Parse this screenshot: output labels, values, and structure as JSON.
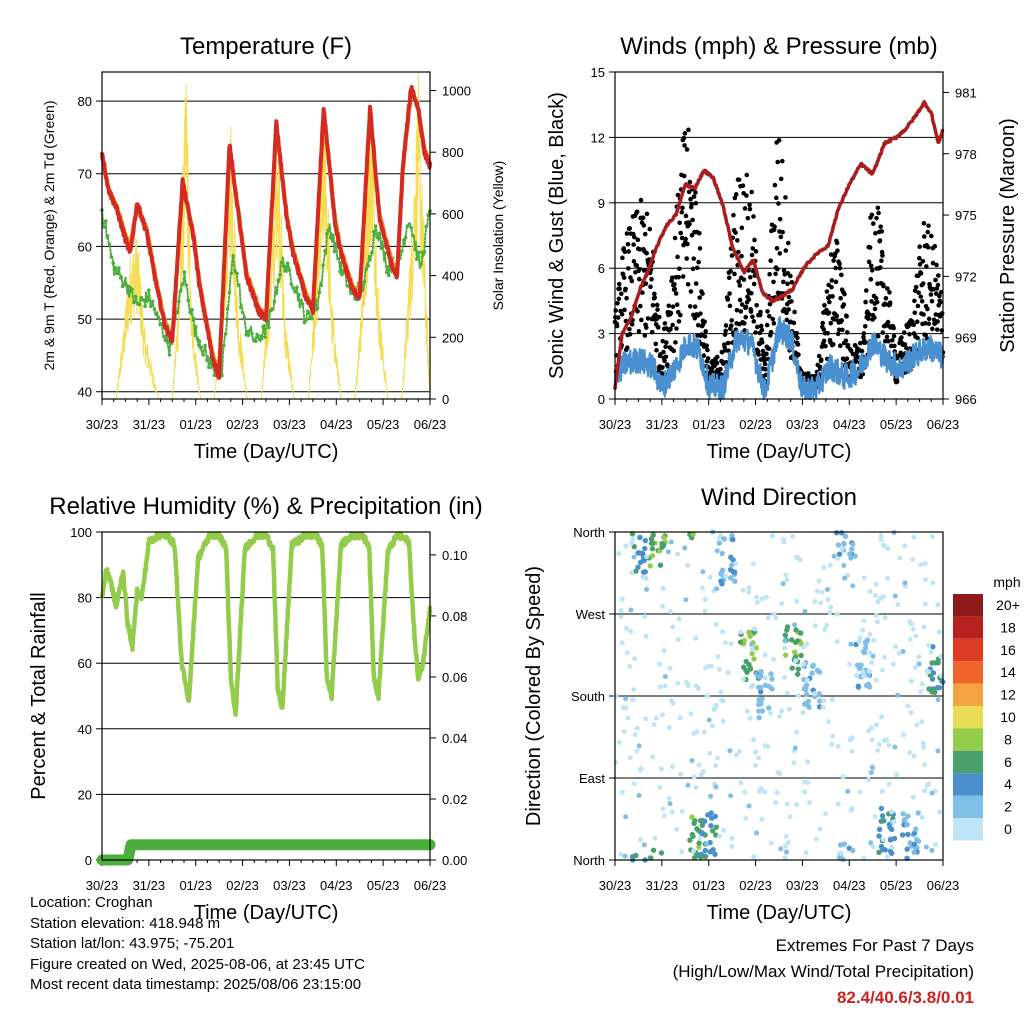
{
  "panels": {
    "temperature": {
      "title": "Temperature (F)",
      "ylabel_left": "2m & 9m T (Red, Orange) & 2m Td (Green)",
      "ylabel_right": "Solar Insolation (Yellow)",
      "xlabel": "Time (Day/UTC)"
    },
    "winds": {
      "title": "Winds (mph) & Pressure (mb)",
      "ylabel_left": "Sonic Wind & Gust (Blue, Black)",
      "ylabel_right": "Station Pressure (Maroon)",
      "xlabel": "Time (Day/UTC)"
    },
    "humidity": {
      "title": "Relative Humidity (%) & Precipitation (in)",
      "ylabel_left": "Percent & Total Rainfall",
      "xlabel": "Time (Day/UTC)"
    },
    "direction": {
      "title": "Wind Direction",
      "ylabel_left": "Direction (Colored By Speed)",
      "xlabel": "Time (Day/UTC)",
      "legend_title": "mph"
    }
  },
  "info": {
    "location": "Location: Croghan",
    "elevation": "Station elevation: 418.948 m",
    "latlon": "Station lat/lon: 43.975; -75.201",
    "created": "Figure created on Wed, 2025-08-06, at 23:45 UTC",
    "recent": "Most recent data timestamp: 2025/08/06 23:15:00"
  },
  "extremes": {
    "title": "Extremes For Past 7 Days",
    "subtitle": "(High/Low/Max Wind/Total Precipitation)",
    "values": "82.4/40.6/3.8/0.01"
  },
  "chart_data": [
    {
      "type": "line",
      "panel": "temperature",
      "title": "Temperature (F)",
      "xlabel": "Time (Day/UTC)",
      "ylabel": "2m & 9m T (Red, Orange) & 2m Td (Green)",
      "ylabel_right": "Solar Insolation (Yellow)",
      "x_ticks": [
        "30/23",
        "31/23",
        "01/23",
        "02/23",
        "03/23",
        "04/23",
        "05/23",
        "06/23"
      ],
      "ylim": [
        39,
        84
      ],
      "y_ticks": [
        40,
        50,
        60,
        70,
        80
      ],
      "ylim_right": [
        0,
        1060
      ],
      "y_ticks_right": [
        0,
        200,
        400,
        600,
        800,
        1000
      ],
      "grid": "horizontal",
      "colors": {
        "t2m": "#d42a22",
        "t9m": "#f0962a",
        "td": "#4cae3c",
        "solar": "#f5dc52"
      },
      "series": [
        {
          "x": [
            0,
            0.13,
            0.32,
            0.5,
            0.6,
            0.75,
            0.95,
            1.18,
            1.35,
            1.5,
            1.72,
            1.96,
            2.07,
            2.35,
            2.5,
            2.72,
            2.96,
            3.08,
            3.35,
            3.5,
            3.72,
            3.94,
            4.08,
            4.35,
            4.5,
            4.73,
            4.98,
            5.1,
            5.35,
            5.5,
            5.72,
            5.92,
            6.08,
            6.2,
            6.3,
            6.42,
            6.6,
            6.75,
            6.88,
            7.0
          ],
          "values": [
            73,
            68,
            65,
            61,
            59,
            66,
            62,
            54,
            49,
            47,
            69,
            61,
            55,
            45,
            42,
            74,
            62,
            56,
            51,
            50,
            77,
            64,
            59,
            53,
            51,
            79,
            63,
            59,
            54,
            53,
            79,
            64,
            60,
            57,
            56,
            71,
            82,
            79,
            73,
            71
          ]
        },
        {
          "x": [
            0,
            0.13,
            0.32,
            0.5,
            0.6,
            0.75,
            0.95,
            1.18,
            1.35,
            1.5,
            1.72,
            1.96,
            2.07,
            2.35,
            2.5,
            2.72,
            2.96,
            3.08,
            3.35,
            3.5,
            3.72,
            3.94,
            4.08,
            4.35,
            4.5,
            4.73,
            4.98,
            5.1,
            5.35,
            5.5,
            5.72,
            5.92,
            6.08,
            6.2,
            6.3,
            6.42,
            6.6,
            6.75,
            6.88,
            7.0
          ],
          "values": [
            72.5,
            68,
            65.5,
            61.5,
            60,
            65.5,
            62.5,
            54.5,
            49.5,
            47.5,
            68.5,
            61.5,
            55.5,
            45.5,
            42.5,
            73.5,
            62.5,
            56.5,
            51.5,
            50.5,
            76.5,
            64.5,
            59.5,
            53.5,
            51.5,
            78.5,
            63.5,
            59.5,
            54.5,
            53.5,
            78.5,
            64.5,
            60.5,
            57.5,
            56.5,
            70.5,
            81.5,
            78.8,
            73.5,
            71.5
          ]
        },
        {
          "x": [
            0,
            0.25,
            0.5,
            0.75,
            1.0,
            1.2,
            1.45,
            1.75,
            2.0,
            2.3,
            2.55,
            2.8,
            3.05,
            3.3,
            3.55,
            3.85,
            4.1,
            4.35,
            4.6,
            4.85,
            5.1,
            5.35,
            5.6,
            5.85,
            6.1,
            6.35,
            6.55,
            6.8,
            7.0
          ],
          "values": [
            65,
            57,
            55,
            52,
            53,
            50,
            46,
            56,
            48,
            44,
            42,
            59,
            49,
            47,
            49,
            58,
            55,
            50,
            52,
            63,
            57,
            53,
            55,
            63,
            57,
            58,
            64,
            57,
            65
          ]
        },
        {
          "x": [
            0,
            0.3,
            0.45,
            0.6,
            0.75,
            0.9,
            1.2,
            1.5,
            1.65,
            1.8,
            1.9,
            2.1,
            2.4,
            2.6,
            2.75,
            2.9,
            3.1,
            3.4,
            3.6,
            3.75,
            3.9,
            4.1,
            4.4,
            4.6,
            4.75,
            4.9,
            5.1,
            5.4,
            5.6,
            5.75,
            5.9,
            6.1,
            6.4,
            6.6,
            6.75,
            6.9,
            7.0
          ],
          "values": [
            0,
            0,
            200,
            430,
            500,
            220,
            0,
            0,
            350,
            1000,
            300,
            0,
            0,
            380,
            860,
            280,
            0,
            0,
            420,
            880,
            260,
            0,
            0,
            450,
            900,
            300,
            0,
            0,
            460,
            940,
            310,
            0,
            0,
            500,
            960,
            380,
            0
          ]
        }
      ]
    },
    {
      "type": "line",
      "panel": "winds",
      "title": "Winds (mph) & Pressure (mb)",
      "xlabel": "Time (Day/UTC)",
      "ylabel": "Sonic Wind & Gust (Blue, Black)",
      "ylabel_right": "Station Pressure (Maroon)",
      "x_ticks": [
        "30/23",
        "31/23",
        "01/23",
        "02/23",
        "03/23",
        "04/23",
        "05/23",
        "06/23"
      ],
      "ylim": [
        0,
        15
      ],
      "y_ticks": [
        0,
        3,
        6,
        9,
        12,
        15
      ],
      "ylim_right": [
        966,
        982
      ],
      "y_ticks_right": [
        966,
        969,
        972,
        975,
        978,
        981
      ],
      "grid": "horizontal",
      "colors": {
        "wind": "#4a90d0",
        "gust": "#000000",
        "pressure": "#a81e1e"
      },
      "series": [
        {
          "x": [
            0,
            0.2,
            0.5,
            0.8,
            1.0,
            1.3,
            1.55,
            1.8,
            2.0,
            2.3,
            2.6,
            2.9,
            3.2,
            3.5,
            3.75,
            4.0,
            4.3,
            4.6,
            4.9,
            5.2,
            5.5,
            5.8,
            6.1,
            6.4,
            6.7,
            7.0
          ],
          "values": [
            1.0,
            1.6,
            1.8,
            1.5,
            0.5,
            1.5,
            2.6,
            2.2,
            0.6,
            0.5,
            2.8,
            2.6,
            0.3,
            3.2,
            2.8,
            0.4,
            0.5,
            1.5,
            1.0,
            1.3,
            2.6,
            1.8,
            1.4,
            2.0,
            2.4,
            1.9
          ]
        },
        {
          "x": [
            0,
            0.2,
            0.4,
            0.6,
            0.8,
            1.0,
            1.3,
            1.5,
            1.7,
            2.0,
            2.3,
            2.6,
            2.9,
            3.2,
            3.45,
            3.6,
            3.8,
            4.0,
            4.3,
            4.6,
            4.8,
            5.0,
            5.3,
            5.5,
            5.7,
            6.0,
            6.3,
            6.6,
            6.85,
            7.0
          ],
          "values": [
            2.5,
            4.8,
            5.5,
            6.0,
            5.0,
            1.5,
            5.5,
            8.5,
            7.0,
            1.0,
            1.5,
            7.0,
            6.5,
            1.0,
            8.5,
            7.0,
            3.0,
            0.8,
            0.7,
            4.5,
            5.0,
            1.5,
            1.8,
            6.5,
            5.0,
            1.5,
            2.5,
            5.5,
            4.5,
            3.0
          ]
        },
        {
          "x": [
            0,
            0.15,
            0.35,
            0.55,
            0.7,
            0.9,
            1.1,
            1.3,
            1.5,
            1.7,
            1.9,
            2.1,
            2.3,
            2.5,
            2.75,
            2.95,
            3.15,
            3.35,
            3.55,
            3.8,
            4.05,
            4.35,
            4.55,
            4.75,
            5.0,
            5.25,
            5.5,
            5.75,
            6.0,
            6.2,
            6.4,
            6.6,
            6.75,
            6.9,
            7.0
          ],
          "values": [
            966.5,
            969.2,
            970.0,
            971.5,
            972.2,
            973.5,
            974.5,
            975.0,
            976.5,
            976.3,
            977.2,
            976.8,
            975.5,
            973.5,
            972.2,
            972.8,
            971.2,
            970.8,
            971.0,
            971.4,
            972.5,
            973.2,
            973.5,
            975.2,
            976.5,
            977.5,
            977.0,
            978.5,
            978.8,
            979.2,
            979.8,
            980.5,
            980.0,
            978.5,
            979.2
          ]
        }
      ]
    },
    {
      "type": "line",
      "panel": "humidity",
      "title": "Relative Humidity (%) & Precipitation (in)",
      "xlabel": "Time (Day/UTC)",
      "ylabel": "Percent & Total Rainfall",
      "x_ticks": [
        "30/23",
        "31/23",
        "01/23",
        "02/23",
        "03/23",
        "04/23",
        "05/23",
        "06/23"
      ],
      "ylim": [
        0,
        100
      ],
      "y_ticks": [
        0,
        20,
        40,
        60,
        80,
        100
      ],
      "ylim_right": [
        0,
        0.1075
      ],
      "y_ticks_right": [
        0.0,
        0.02,
        0.04,
        0.06,
        0.08,
        0.1
      ],
      "grid": "horizontal",
      "colors": {
        "rh": "#92cc4a",
        "precip": "#4cae3c"
      },
      "series": [
        {
          "x": [
            0,
            0.1,
            0.2,
            0.3,
            0.45,
            0.55,
            0.65,
            0.75,
            0.85,
            1.0,
            1.2,
            1.4,
            1.55,
            1.7,
            1.85,
            2.05,
            2.3,
            2.5,
            2.65,
            2.75,
            2.85,
            3.05,
            3.3,
            3.5,
            3.65,
            3.75,
            3.85,
            4.05,
            4.35,
            4.55,
            4.7,
            4.8,
            4.9,
            5.1,
            5.35,
            5.55,
            5.7,
            5.8,
            5.9,
            6.1,
            6.3,
            6.45,
            6.55,
            6.65,
            6.75,
            6.85,
            7.0
          ],
          "values": [
            80,
            89,
            84,
            77,
            88,
            72,
            65,
            82,
            80,
            97,
            99,
            99,
            96,
            60,
            48,
            92,
            99,
            99,
            95,
            55,
            44,
            95,
            99,
            99,
            95,
            52,
            46,
            96,
            99,
            99,
            96,
            55,
            50,
            96,
            99,
            99,
            96,
            56,
            50,
            94,
            99,
            98,
            97,
            72,
            55,
            60,
            77
          ]
        },
        {
          "x": [
            0,
            0.55,
            0.62,
            7.0
          ],
          "values": [
            0.0,
            0.0,
            0.005,
            0.005
          ]
        }
      ]
    },
    {
      "type": "scatter",
      "panel": "direction",
      "title": "Wind Direction",
      "xlabel": "Time (Day/UTC)",
      "ylabel": "Direction (Colored By Speed)",
      "x_ticks": [
        "30/23",
        "31/23",
        "01/23",
        "02/23",
        "03/23",
        "04/23",
        "05/23",
        "06/23"
      ],
      "y_tick_labels": [
        "North",
        "East",
        "South",
        "West",
        "North"
      ],
      "ylim": [
        0,
        360
      ],
      "grid": "horizontal",
      "clusters": [
        {
          "x": 0.5,
          "dir": 340,
          "level": 2
        },
        {
          "x": 0.9,
          "dir": 345,
          "level": 3
        },
        {
          "x": 1.7,
          "dir": 20,
          "level": 3
        },
        {
          "x": 2.0,
          "dir": 30,
          "level": 2
        },
        {
          "x": 2.4,
          "dir": 330,
          "level": 1
        },
        {
          "x": 2.85,
          "dir": 225,
          "level": 3
        },
        {
          "x": 3.2,
          "dir": 180,
          "level": 1
        },
        {
          "x": 3.8,
          "dir": 230,
          "level": 3
        },
        {
          "x": 4.2,
          "dir": 190,
          "level": 1
        },
        {
          "x": 4.9,
          "dir": 355,
          "level": 1
        },
        {
          "x": 5.3,
          "dir": 215,
          "level": 1
        },
        {
          "x": 5.8,
          "dir": 30,
          "level": 2
        },
        {
          "x": 6.3,
          "dir": 25,
          "level": 1
        },
        {
          "x": 6.85,
          "dir": 210,
          "level": 2
        }
      ],
      "colorbar": {
        "title": "mph",
        "labels": [
          "20+",
          "18",
          "16",
          "14",
          "12",
          "10",
          "8",
          "6",
          "4",
          "2",
          "0"
        ],
        "colors": [
          "#8e1b1b",
          "#b81f1f",
          "#dc3b25",
          "#ef6428",
          "#f5a243",
          "#e8de55",
          "#92cc4a",
          "#4aa06a",
          "#4a8fcc",
          "#7fbfe6",
          "#bfe4f7"
        ]
      }
    }
  ]
}
